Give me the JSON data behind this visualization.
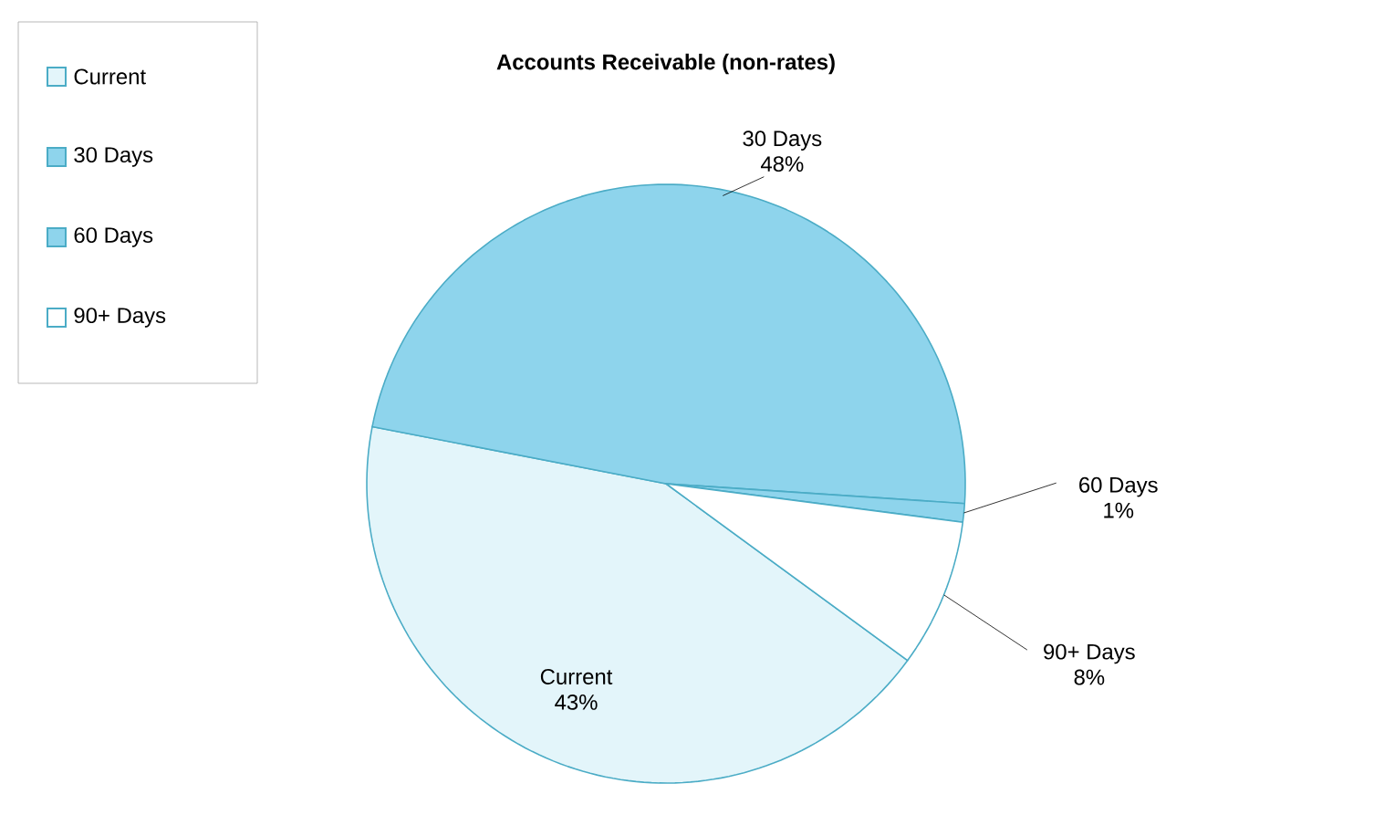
{
  "chart_data": {
    "type": "pie",
    "title": "Accounts Receivable (non-rates)",
    "categories": [
      "Current",
      "30 Days",
      "60 Days",
      "90+ Days"
    ],
    "values": [
      43,
      48,
      1,
      8
    ],
    "value_labels": [
      "43%",
      "48%",
      "1%",
      "8%"
    ],
    "colors": [
      "#e3f5fa",
      "#8ed4ec",
      "#8ed4ec",
      "#ffffff"
    ],
    "legend": "top left"
  }
}
